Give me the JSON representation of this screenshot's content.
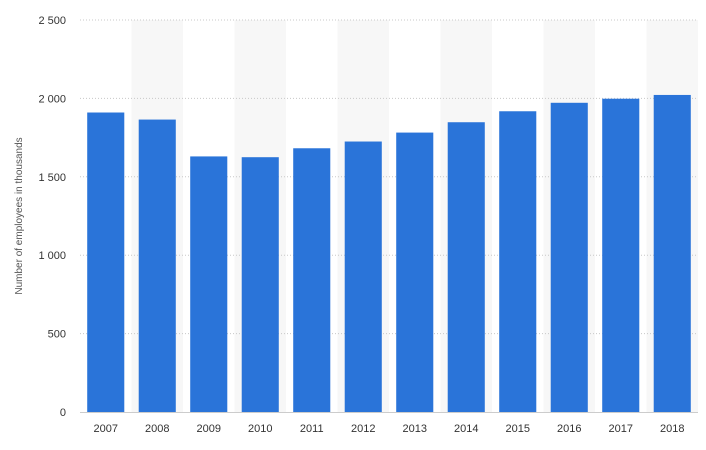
{
  "chart_data": {
    "type": "bar",
    "title": "",
    "xlabel": "",
    "ylabel": "Number of employees in thousands",
    "categories": [
      "2007",
      "2008",
      "2009",
      "2010",
      "2011",
      "2012",
      "2013",
      "2014",
      "2015",
      "2016",
      "2017",
      "2018"
    ],
    "values": [
      1910,
      1865,
      1630,
      1625,
      1682,
      1725,
      1782,
      1848,
      1918,
      1972,
      1998,
      2022
    ],
    "ylim": [
      0,
      2500
    ],
    "yticks": [
      0,
      500,
      1000,
      1500,
      2000,
      2500
    ],
    "ytick_labels": [
      "0",
      "500",
      "1 000",
      "1 500",
      "2 000",
      "2 500"
    ],
    "grid": true,
    "grid_style": "dotted",
    "alternating_column_bands": true,
    "bar_color": "#2a74d9",
    "band_color": "#f7f7f7",
    "legend": "none"
  }
}
